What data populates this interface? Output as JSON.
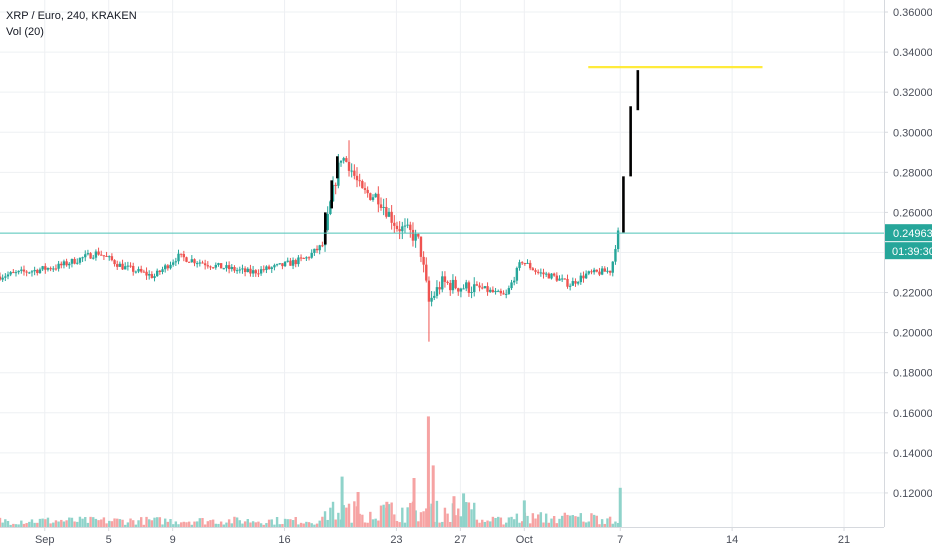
{
  "header": {
    "symbol_line": "XRP / Euro, 240, KRAKEN",
    "volume_line": "Vol (20)"
  },
  "chart_data": {
    "type": "candlestick",
    "y_ticks": [
      "0.36000",
      "0.34000",
      "0.32000",
      "0.30000",
      "0.28000",
      "0.26000",
      "0.24000",
      "0.22000",
      "0.20000",
      "0.18000",
      "0.16000",
      "0.14000",
      "0.12000"
    ],
    "y_tick_values": [
      0.36,
      0.34,
      0.32,
      0.3,
      0.28,
      0.26,
      0.24,
      0.22,
      0.2,
      0.18,
      0.16,
      0.14,
      0.12
    ],
    "ylim": [
      0.103,
      0.366
    ],
    "x_ticks": [
      "Sep",
      "5",
      "9",
      "16",
      "23",
      "27",
      "Oct",
      "7",
      "14",
      "21"
    ],
    "x_tick_days": [
      1,
      5,
      9,
      16,
      23,
      27,
      31,
      37,
      44,
      51
    ],
    "xlim_days": [
      -1.8,
      53.5
    ],
    "last_price_label": "0.24963",
    "last_price": 0.24963,
    "countdown_label": "01:39:30",
    "resistance_line": {
      "value": 0.3325,
      "from_day": 35.0,
      "to_day": 45.9,
      "color": "#ffeb3b"
    },
    "key_points": [
      {
        "day": -1.8,
        "price": 0.228
      },
      {
        "day": 2,
        "price": 0.233
      },
      {
        "day": 4.5,
        "price": 0.24
      },
      {
        "day": 6,
        "price": 0.233
      },
      {
        "day": 8,
        "price": 0.228
      },
      {
        "day": 9.5,
        "price": 0.238
      },
      {
        "day": 12,
        "price": 0.233
      },
      {
        "day": 14,
        "price": 0.23
      },
      {
        "day": 15.8,
        "price": 0.233
      },
      {
        "day": 17.5,
        "price": 0.237
      },
      {
        "day": 18.6,
        "price": 0.244
      },
      {
        "day": 19.1,
        "price": 0.267
      },
      {
        "day": 19.7,
        "price": 0.288
      },
      {
        "day": 20.2,
        "price": 0.284
      },
      {
        "day": 21.0,
        "price": 0.27
      },
      {
        "day": 22.0,
        "price": 0.268
      },
      {
        "day": 23.2,
        "price": 0.253
      },
      {
        "day": 24.0,
        "price": 0.25
      },
      {
        "day": 24.6,
        "price": 0.245
      },
      {
        "day": 25.2,
        "price": 0.215
      },
      {
        "day": 26.0,
        "price": 0.225
      },
      {
        "day": 27.0,
        "price": 0.223
      },
      {
        "day": 28.5,
        "price": 0.222
      },
      {
        "day": 30.0,
        "price": 0.218
      },
      {
        "day": 31.0,
        "price": 0.236
      },
      {
        "day": 32.0,
        "price": 0.23
      },
      {
        "day": 33.0,
        "price": 0.228
      },
      {
        "day": 34.0,
        "price": 0.224
      },
      {
        "day": 35.0,
        "price": 0.229
      },
      {
        "day": 36.6,
        "price": 0.231
      },
      {
        "day": 37.0,
        "price": 0.2496
      }
    ],
    "wick_lows": [
      {
        "day": 25.0,
        "price": 0.1955
      }
    ],
    "wick_highs": [
      {
        "day": 20.05,
        "price": 0.296
      }
    ],
    "black_marks": [
      {
        "day": 18.55,
        "from": 0.244,
        "to": 0.26
      },
      {
        "day": 18.95,
        "from": 0.262,
        "to": 0.276
      },
      {
        "day": 19.3,
        "from": 0.277,
        "to": 0.288
      },
      {
        "day": 37.2,
        "from": 0.25,
        "to": 0.278
      },
      {
        "day": 37.65,
        "from": 0.278,
        "to": 0.313
      },
      {
        "day": 38.1,
        "from": 0.311,
        "to": 0.331
      }
    ],
    "volume_spikes": [
      {
        "day": 19.6,
        "level": 0.36,
        "color": "#26a69a"
      },
      {
        "day": 20.6,
        "level": 0.25,
        "color": "#ef5350"
      },
      {
        "day": 22.4,
        "level": 0.18,
        "color": "#ef5350"
      },
      {
        "day": 24.1,
        "level": 0.35,
        "color": "#ef5350"
      },
      {
        "day": 25.0,
        "level": 0.79,
        "color": "#ef5350"
      },
      {
        "day": 25.3,
        "level": 0.44,
        "color": "#ef5350"
      },
      {
        "day": 26.6,
        "level": 0.22,
        "color": "#ef5350"
      },
      {
        "day": 27.2,
        "level": 0.24,
        "color": "#26a69a"
      },
      {
        "day": 31.0,
        "level": 0.19,
        "color": "#26a69a"
      },
      {
        "day": 37.0,
        "level": 0.28,
        "color": "#26a69a"
      }
    ]
  },
  "colors": {
    "up": "#26a69a",
    "down": "#ef5350",
    "vol_up": "#8fd3ca",
    "vol_down": "#f6a3a3",
    "grid": "#eef0f3",
    "price_line": "#4ec3b8",
    "label_bg": "#26a69a",
    "axis_border": "#d6d9de"
  }
}
